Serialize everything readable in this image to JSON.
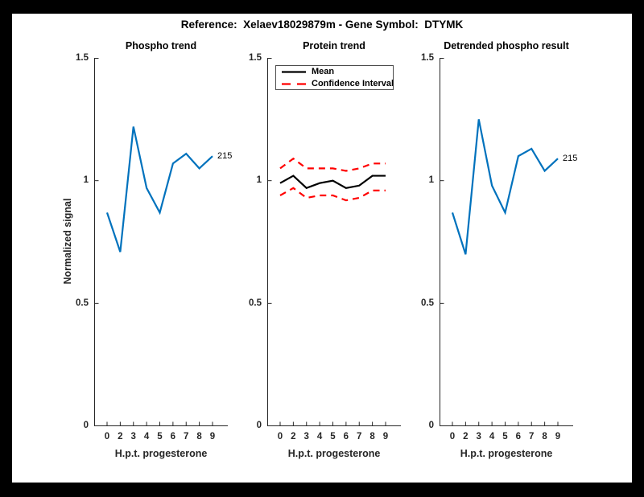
{
  "figure": {
    "title": "Reference:  Xelaev18029879m - Gene Symbol:  DTYMK",
    "frame_color": "#000000",
    "canvas_color": "#ffffff"
  },
  "colors": {
    "axis": "#262626",
    "phospho_line": "#0072BD",
    "mean_line": "#000000",
    "ci_line": "#FF0000"
  },
  "chart_data": [
    {
      "type": "line",
      "name": "phospho-trend",
      "title": "Phospho trend",
      "xlabel": "H.p.t. progesterone",
      "ylabel": "Normalized signal",
      "x_ticks": [
        "0",
        "2",
        "3",
        "4",
        "5",
        "6",
        "7",
        "8",
        "9"
      ],
      "y_ticks": [
        "0",
        "0.5",
        "1",
        "1.5"
      ],
      "ylim": [
        0,
        1.5
      ],
      "grid": false,
      "end_label": "215",
      "series": [
        {
          "name": "215",
          "color": "#0072BD",
          "style": "solid",
          "values": [
            0.87,
            0.71,
            1.22,
            0.97,
            0.87,
            1.07,
            1.11,
            1.05,
            1.1
          ]
        }
      ]
    },
    {
      "type": "line",
      "name": "protein-trend",
      "title": "Protein trend",
      "xlabel": "H.p.t. progesterone",
      "ylabel": "",
      "x_ticks": [
        "0",
        "2",
        "3",
        "4",
        "5",
        "6",
        "7",
        "8",
        "9"
      ],
      "y_ticks": [
        "0",
        "0.5",
        "1",
        "1.5"
      ],
      "ylim": [
        0,
        1.5
      ],
      "grid": false,
      "legend": {
        "position": "top-left",
        "entries": [
          "Mean",
          "Confidence Interval"
        ]
      },
      "series": [
        {
          "name": "Mean",
          "color": "#000000",
          "style": "solid",
          "values": [
            0.99,
            1.02,
            0.97,
            0.99,
            1.0,
            0.97,
            0.98,
            1.02,
            1.02
          ]
        },
        {
          "name": "Confidence Interval upper",
          "color": "#FF0000",
          "style": "dashed",
          "values": [
            1.05,
            1.09,
            1.05,
            1.05,
            1.05,
            1.04,
            1.05,
            1.07,
            1.07
          ]
        },
        {
          "name": "Confidence Interval lower",
          "color": "#FF0000",
          "style": "dashed",
          "values": [
            0.94,
            0.97,
            0.93,
            0.94,
            0.94,
            0.92,
            0.93,
            0.96,
            0.96
          ]
        }
      ]
    },
    {
      "type": "line",
      "name": "detrended-phospho-result",
      "title": "Detrended phospho result",
      "xlabel": "H.p.t. progesterone",
      "ylabel": "",
      "x_ticks": [
        "0",
        "2",
        "3",
        "4",
        "5",
        "6",
        "7",
        "8",
        "9"
      ],
      "y_ticks": [
        "0",
        "0.5",
        "1",
        "1.5"
      ],
      "ylim": [
        0,
        1.5
      ],
      "grid": false,
      "end_label": "215",
      "series": [
        {
          "name": "215",
          "color": "#0072BD",
          "style": "solid",
          "values": [
            0.87,
            0.7,
            1.25,
            0.98,
            0.87,
            1.1,
            1.13,
            1.04,
            1.09
          ]
        }
      ]
    }
  ]
}
